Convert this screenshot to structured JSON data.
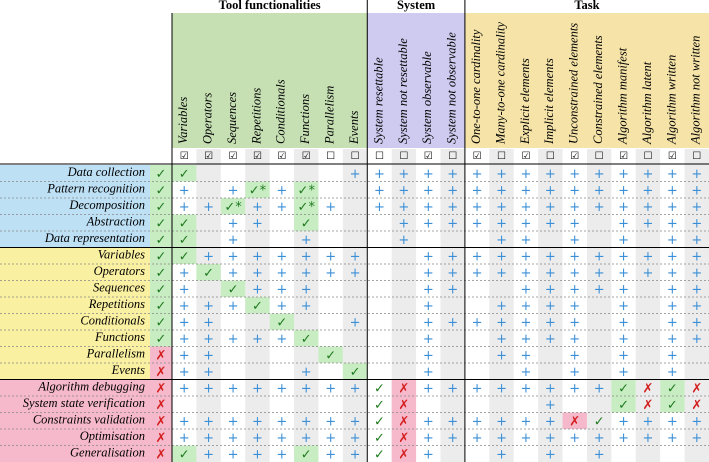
{
  "groups": [
    {
      "label": "Tool functionalities",
      "color": "#c6e0b4"
    },
    {
      "label": "System",
      "color": "#cfcaef"
    },
    {
      "label": "Task",
      "color": "#f5e3a8"
    }
  ],
  "columns": [
    {
      "label": "Variables",
      "group": 0,
      "box": "☑"
    },
    {
      "label": "Operators",
      "group": 0,
      "box": "☑"
    },
    {
      "label": "Sequences",
      "group": 0,
      "box": "☑"
    },
    {
      "label": "Repetitions",
      "group": 0,
      "box": "☑"
    },
    {
      "label": "Conditionals",
      "group": 0,
      "box": "☑"
    },
    {
      "label": "Functions",
      "group": 0,
      "box": "☑"
    },
    {
      "label": "Parallelism",
      "group": 0,
      "box": "☐"
    },
    {
      "label": "Events",
      "group": 0,
      "box": "☐"
    },
    {
      "label": "System resettable",
      "group": 1,
      "box": "☐"
    },
    {
      "label": "System not resettable",
      "group": 1,
      "box": "☐"
    },
    {
      "label": "System observable",
      "group": 1,
      "box": "☑"
    },
    {
      "label": "System not observable",
      "group": 1,
      "box": "☐"
    },
    {
      "label": "One-to-one cardinality",
      "group": 2,
      "box": "☑"
    },
    {
      "label": "Many-to-one cardinality",
      "group": 2,
      "box": "☐"
    },
    {
      "label": "Explicit elements",
      "group": 2,
      "box": "☑"
    },
    {
      "label": "Implicit elements",
      "group": 2,
      "box": "☐"
    },
    {
      "label": "Unconstrained elements",
      "group": 2,
      "box": "☑"
    },
    {
      "label": "Constrained elements",
      "group": 2,
      "box": "☐"
    },
    {
      "label": "Algorithm manifest",
      "group": 2,
      "box": "☑"
    },
    {
      "label": "Algorithm latent",
      "group": 2,
      "box": "☐"
    },
    {
      "label": "Algorithm written",
      "group": 2,
      "box": "☑"
    },
    {
      "label": "Algorithm not written",
      "group": 2,
      "box": "☐"
    }
  ],
  "row_groups": [
    {
      "color": "#bde0f5",
      "rows": [
        {
          "label": "Data collection",
          "cells": [
            "✓",
            "✓",
            null,
            null,
            null,
            null,
            null,
            null,
            "+",
            "+",
            "+",
            "+",
            "+",
            "+",
            "+",
            "+",
            "+",
            "+",
            "+",
            "+",
            "+",
            "+",
            "+"
          ],
          "green": [
            0,
            1
          ],
          "red": []
        },
        {
          "label": "Pattern recognition",
          "cells": [
            "✓",
            "+",
            null,
            "+",
            "✓*",
            "+",
            "✓*",
            null,
            null,
            "+",
            "+",
            "+",
            "+",
            "+",
            "+",
            "+",
            "+",
            "+",
            "+",
            "+",
            "+",
            "+",
            "+"
          ],
          "green": [
            0,
            4,
            6
          ],
          "red": []
        },
        {
          "label": "Decomposition",
          "cells": [
            "✓",
            "+",
            "+",
            "✓*",
            "+",
            "+",
            "✓*",
            "+",
            null,
            "+",
            "+",
            "+",
            "+",
            "+",
            "+",
            "+",
            "+",
            "+",
            "+",
            "+",
            "+",
            "+",
            "+"
          ],
          "green": [
            0,
            3,
            6
          ],
          "red": []
        },
        {
          "label": "Abstraction",
          "cells": [
            "✓",
            "✓",
            null,
            "+",
            "+",
            null,
            "✓",
            null,
            null,
            null,
            "+",
            "+",
            "+",
            "+",
            "+",
            "+",
            "+",
            "+",
            null,
            "+",
            "+",
            "+",
            "+"
          ],
          "green": [
            0,
            1,
            6
          ],
          "red": []
        },
        {
          "label": "Data representation",
          "cells": [
            "✓",
            "✓",
            null,
            "+",
            null,
            null,
            "+",
            null,
            null,
            null,
            "+",
            null,
            null,
            null,
            "+",
            "+",
            null,
            "+",
            null,
            "+",
            null,
            "+",
            "+"
          ],
          "green": [
            0,
            1
          ],
          "red": []
        }
      ]
    },
    {
      "color": "#faf0a2",
      "rows": [
        {
          "label": "Variables",
          "cells": [
            "✓",
            "✓",
            "+",
            "+",
            "+",
            "+",
            "+",
            "+",
            "+",
            null,
            null,
            "+",
            "+",
            "+",
            "+",
            "+",
            "+",
            "+",
            "+",
            "+",
            "+",
            "+",
            "+"
          ],
          "green": [
            0,
            1
          ],
          "red": []
        },
        {
          "label": "Operators",
          "cells": [
            "✓",
            "+",
            "✓",
            "+",
            "+",
            "+",
            "+",
            "+",
            "+",
            null,
            null,
            "+",
            "+",
            "+",
            "+",
            "+",
            "+",
            "+",
            "+",
            "+",
            "+",
            "+",
            "+"
          ],
          "green": [
            0,
            2
          ],
          "red": []
        },
        {
          "label": "Sequences",
          "cells": [
            "✓",
            "+",
            null,
            "✓",
            "+",
            "+",
            "+",
            null,
            null,
            null,
            null,
            "+",
            "+",
            null,
            null,
            "+",
            "+",
            "+",
            "+",
            "+",
            null,
            "+",
            "+"
          ],
          "green": [
            0,
            3
          ],
          "red": []
        },
        {
          "label": "Repetitions",
          "cells": [
            "✓",
            "+",
            "+",
            "+",
            "✓",
            "+",
            "+",
            null,
            null,
            null,
            null,
            "+",
            null,
            null,
            "+",
            "+",
            "+",
            "+",
            null,
            "+",
            null,
            "+",
            "+"
          ],
          "green": [
            0,
            4
          ],
          "red": []
        },
        {
          "label": "Conditionals",
          "cells": [
            "✓",
            "+",
            "+",
            null,
            null,
            "✓",
            null,
            null,
            "+",
            null,
            null,
            "+",
            "+",
            "+",
            "+",
            "+",
            "+",
            "+",
            null,
            "+",
            null,
            "+",
            "+"
          ],
          "green": [
            0,
            5
          ],
          "red": []
        },
        {
          "label": "Functions",
          "cells": [
            "✓",
            "+",
            "+",
            "+",
            "+",
            "+",
            "✓",
            null,
            null,
            null,
            null,
            "+",
            null,
            null,
            "+",
            "+",
            "+",
            "+",
            null,
            "+",
            null,
            "+",
            "+"
          ],
          "green": [
            0,
            6
          ],
          "red": []
        },
        {
          "label": "Parallelism",
          "cells": [
            "✗",
            "+",
            "+",
            null,
            null,
            null,
            null,
            "✓",
            null,
            null,
            null,
            "+",
            null,
            null,
            "+",
            "+",
            null,
            "+",
            null,
            "+",
            null,
            "+",
            null
          ],
          "green": [
            7
          ],
          "red": [
            0
          ]
        },
        {
          "label": "Events",
          "cells": [
            "✗",
            "+",
            "+",
            null,
            null,
            null,
            "+",
            null,
            "✓",
            null,
            null,
            "+",
            null,
            null,
            null,
            "+",
            null,
            "+",
            null,
            "+",
            null,
            "+",
            null
          ],
          "green": [
            8
          ],
          "red": [
            0
          ]
        }
      ]
    },
    {
      "color": "#f6b9cb",
      "rows": [
        {
          "label": "Algorithm debugging",
          "cells": [
            "✗",
            "+",
            "+",
            "+",
            "+",
            "+",
            "+",
            "+",
            "+",
            "✓",
            "✗",
            "+",
            "+",
            "+",
            "+",
            "+",
            "+",
            "+",
            "+",
            "✓",
            "✗",
            "✓",
            "✗"
          ],
          "green": [
            19,
            21
          ],
          "red": [
            0,
            10
          ]
        },
        {
          "label": "System state verification",
          "cells": [
            "✗",
            null,
            null,
            null,
            null,
            null,
            null,
            null,
            null,
            "✓",
            "✗",
            null,
            null,
            null,
            null,
            null,
            "+",
            null,
            null,
            "✓",
            "✗",
            "✓",
            "✗"
          ],
          "green": [
            19,
            21
          ],
          "red": [
            0,
            10
          ]
        },
        {
          "label": "Constraints validation",
          "cells": [
            "✗",
            "+",
            "+",
            "+",
            "+",
            "+",
            "+",
            "+",
            "+",
            "✓",
            "✗",
            "+",
            "+",
            "+",
            "+",
            "+",
            "+",
            "✗",
            "✓",
            "+",
            "+",
            "+",
            "+"
          ],
          "green": [],
          "red": [
            0,
            10,
            17
          ]
        },
        {
          "label": "Optimisation",
          "cells": [
            "✗",
            "+",
            "+",
            "+",
            "+",
            "+",
            "+",
            "+",
            "+",
            "✓",
            "✗",
            "+",
            "+",
            "+",
            "+",
            "+",
            "+",
            "+",
            "+",
            "+",
            "+",
            "+",
            "+"
          ],
          "green": [],
          "red": [
            0,
            10
          ]
        },
        {
          "label": "Generalisation",
          "cells": [
            "✗",
            "✓",
            "+",
            "+",
            "+",
            "+",
            "✓",
            "+",
            "+",
            "✓",
            "✗",
            "+",
            null,
            null,
            "+",
            null,
            "+",
            null,
            "+",
            null,
            null,
            null,
            null
          ],
          "green": [
            1,
            6
          ],
          "red": [
            0,
            10
          ]
        }
      ]
    }
  ]
}
